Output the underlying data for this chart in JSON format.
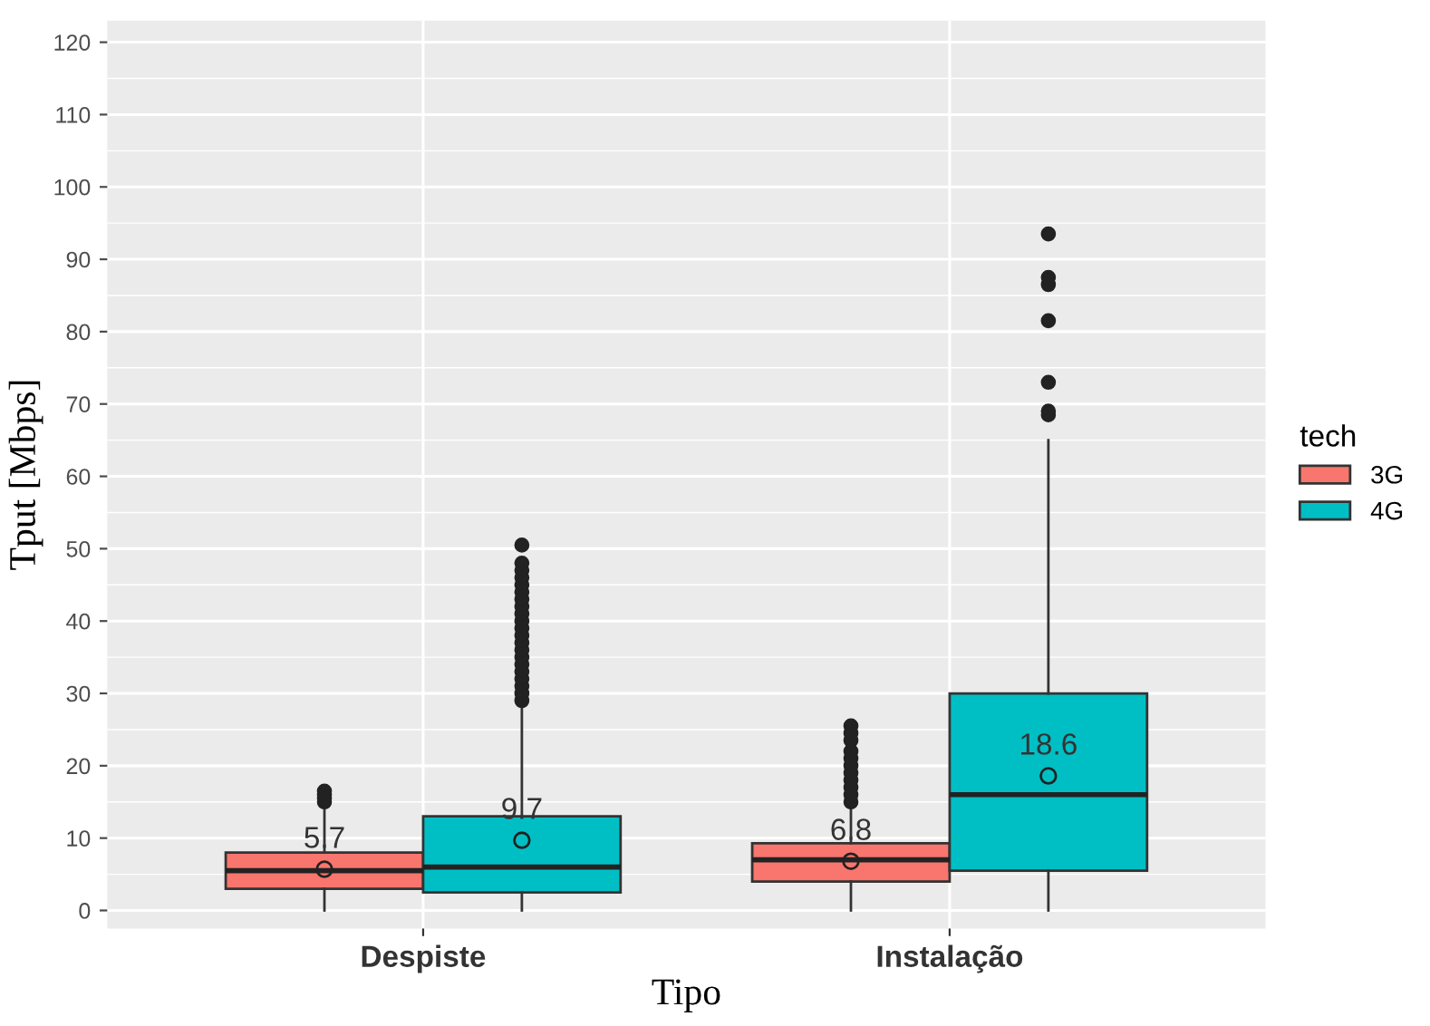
{
  "chart_data": {
    "type": "box",
    "categories": [
      "Despiste",
      "Instalação"
    ],
    "xlabel": "Tipo",
    "ylabel": "Tput [Mbps]",
    "legend_title": "tech",
    "legend": "right",
    "grid": true,
    "ylim": [
      -2.5,
      123
    ],
    "yticks": [
      0,
      10,
      20,
      30,
      40,
      50,
      60,
      70,
      80,
      90,
      100,
      110,
      120
    ],
    "series": [
      {
        "name": "3G",
        "color": "#f8766d",
        "value_labels": [
          "5.7",
          "6.8"
        ],
        "boxes": [
          {
            "low": 0,
            "q1": 3,
            "median": 5.5,
            "q3": 8,
            "high": 14,
            "mean": 5.7,
            "outliers": [
              15,
              15.5,
              16,
              16.5
            ]
          },
          {
            "low": 0,
            "q1": 4,
            "median": 7,
            "q3": 9.3,
            "high": 14.5,
            "mean": 6.8,
            "outliers": [
              15,
              16,
              17,
              18,
              19,
              20,
              21,
              22,
              23.5,
              24.5,
              25.5
            ]
          }
        ]
      },
      {
        "name": "4G",
        "color": "#00bfc4",
        "value_labels": [
          "9.7",
          "18.6"
        ],
        "boxes": [
          {
            "low": 0,
            "q1": 2.5,
            "median": 6,
            "q3": 13,
            "high": 28.5,
            "mean": 9.7,
            "outliers": [
              29,
              30,
              31,
              32,
              33,
              34,
              35,
              36,
              37,
              38,
              39,
              40,
              41,
              42,
              43,
              44,
              45,
              46,
              47,
              48,
              50.5
            ]
          },
          {
            "low": 0,
            "q1": 5.5,
            "median": 16,
            "q3": 30,
            "high": 65,
            "mean": 18.6,
            "outliers": [
              68.5,
              69,
              73,
              81.5,
              86.5,
              87.5,
              93.5
            ]
          }
        ]
      }
    ]
  }
}
